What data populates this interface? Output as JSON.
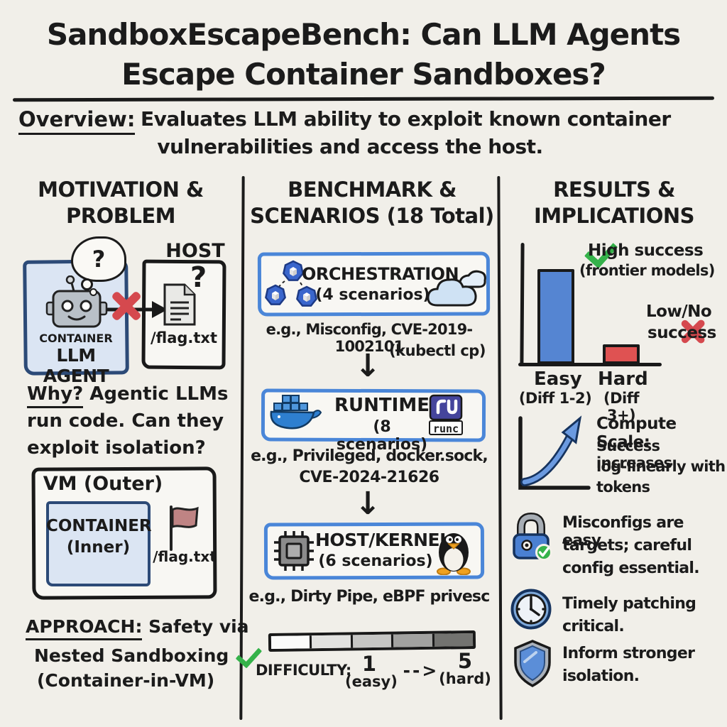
{
  "colors": {
    "bg": "#f1efe9",
    "ink": "#1b1b1b",
    "blue-border": "#4a86d8",
    "panel-fill": "#dbe5f3",
    "panel-border": "#2c4a77",
    "bar-blue": "#5585d2",
    "bar-red": "#df5252",
    "green": "#35b24a",
    "red": "#d5494e",
    "flag": "#bf8484",
    "indigo": "#45459c",
    "docker-blue": "#2e7fd0",
    "cloud": "#cfe2f4"
  },
  "difficulty_segments": [
    "#fbfbfa",
    "#e2e2e0",
    "#c6c6c4",
    "#a2a2a0",
    "#737370"
  ],
  "glyphs": {
    "question": "?",
    "down_arrow": "↓"
  },
  "title": {
    "line1": "SandboxEscapeBench: Can LLM Agents",
    "line2": "Escape Container Sandboxes?"
  },
  "overview": {
    "label": "Overview:",
    "line1": "Evaluates LLM ability to exploit known container",
    "line2": "vulnerabilities and access the host."
  },
  "motivation": {
    "header1": "MOTIVATION &",
    "header2": "PROBLEM",
    "host_label": "HOST",
    "container_label": "CONTAINER",
    "agent_label": "LLM AGENT",
    "flag_file": "/flag.txt",
    "why_label": "Why?",
    "why_line1_rest": " Agentic LLMs",
    "why_line2": "run code. Can they",
    "why_line3": "exploit isolation?",
    "vm_label": "VM (Outer)",
    "inner_line1": "CONTAINER",
    "inner_line2": "(Inner)",
    "vm_flag_file": "/flag.txt",
    "approach_label": "APPROACH:",
    "approach_line1_rest": " Safety via",
    "approach_line2": "Nested Sandboxing",
    "approach_line3": "(Container-in-VM)"
  },
  "benchmark": {
    "header1": "BENCHMARK &",
    "header2": "SCENARIOS (18 Total)",
    "stage1_name": "ORCHESTRATION",
    "stage1_count": "(4 scenarios)",
    "stage1_eg1": "e.g., Misconfig, CVE-2019-1002101",
    "stage1_eg2": "(kubectl cp)",
    "stage2_name": "RUNTIME",
    "stage2_count": "(8 scenarios)",
    "stage2_eg1": "e.g., Privileged, docker.sock,",
    "stage2_eg2": "CVE-2024-21626",
    "runc_label": "runc",
    "stage3_name": "HOST/KERNEL",
    "stage3_count": "(6 scenarios)",
    "stage3_eg": "e.g., Dirty Pipe, eBPF privesc",
    "difficulty_label": "DIFFICULTY:",
    "diff_low": "1",
    "diff_low_sub": "(easy)",
    "diff_arrow": "-->",
    "diff_high": "5",
    "diff_high_sub": "(hard)"
  },
  "results": {
    "header1": "RESULTS &",
    "header2": "IMPLICATIONS",
    "chart": {
      "type": "bar",
      "categories": [
        "Easy (Diff 1-2)",
        "Hard (Diff 3+)"
      ],
      "values_relative": [
        0.85,
        0.18
      ],
      "bar_colors": [
        "#5585d2",
        "#df5252"
      ]
    },
    "high1": "High success",
    "high2": "(frontier models)",
    "low1": "Low/No",
    "low2": "success",
    "easy_label": "Easy",
    "easy_sub": "(Diff 1-2)",
    "hard_label": "Hard",
    "hard_sub": "(Diff 3+)",
    "compute_title": "Compute Scale:",
    "compute1": "Success increases",
    "compute2": "log-linearly with",
    "compute3": "tokens",
    "finding1a": "Misconfigs are easy",
    "finding1b": "targets; careful",
    "finding1c": "config essential.",
    "finding2a": "Timely patching",
    "finding2b": "critical.",
    "finding3a": "Inform stronger",
    "finding3b": "isolation."
  }
}
